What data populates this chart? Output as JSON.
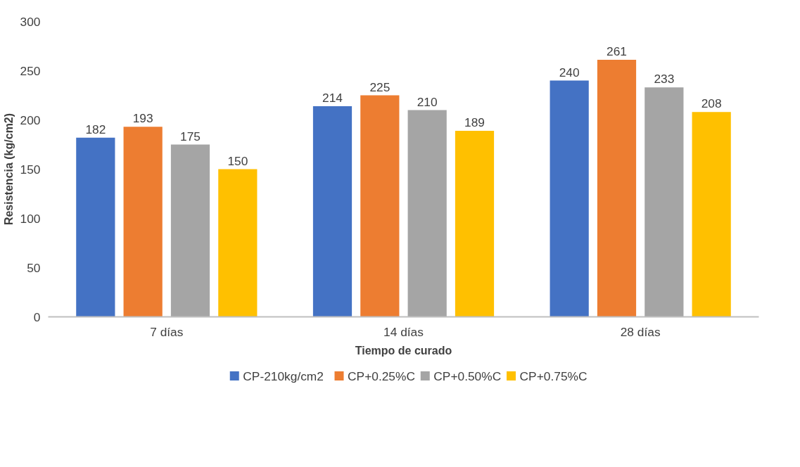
{
  "chart_data": {
    "type": "bar",
    "xlabel": "Tiempo de curado",
    "ylabel": "Resistencia (kg/cm2)",
    "categories": [
      "7 días",
      "14 días",
      "28 días"
    ],
    "series": [
      {
        "name": "CP-210kg/cm2",
        "color": "#4472c4",
        "values": [
          182,
          214,
          240
        ]
      },
      {
        "name": "CP+0.25%C",
        "color": "#ed7d31",
        "values": [
          193,
          225,
          261
        ]
      },
      {
        "name": "CP+0.50%C",
        "color": "#a5a5a5",
        "values": [
          175,
          210,
          233
        ]
      },
      {
        "name": "CP+0.75%C",
        "color": "#ffc000",
        "values": [
          150,
          189,
          208
        ]
      }
    ],
    "ylim": [
      0,
      300
    ],
    "yticks": [
      0,
      50,
      100,
      150,
      200,
      250,
      300
    ],
    "grid": false,
    "legend": "bottom",
    "data_labels": true
  }
}
